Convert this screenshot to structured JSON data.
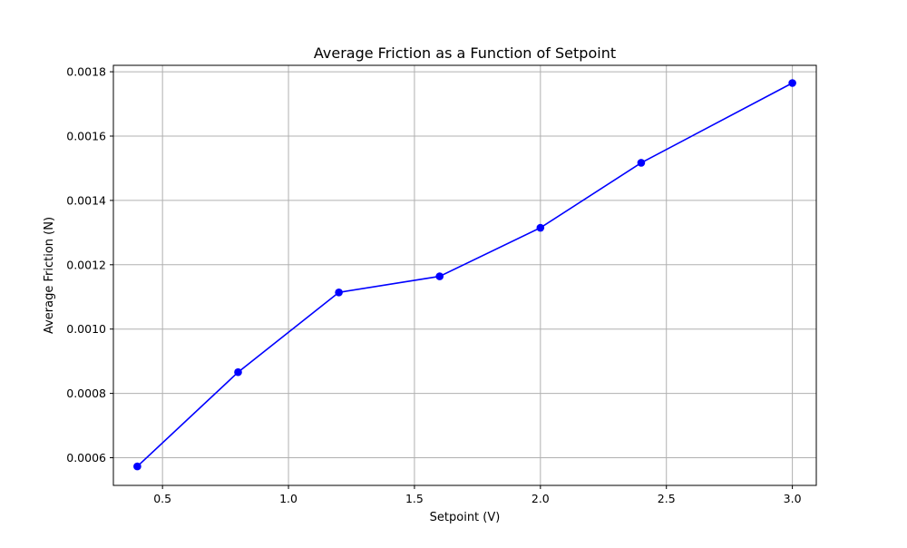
{
  "chart_data": {
    "type": "line",
    "title": "Average Friction as a Function of Setpoint",
    "xlabel": "Setpoint (V)",
    "ylabel": "Average Friction (N)",
    "xlim": [
      0.305,
      3.095
    ],
    "ylim": [
      0.000514,
      0.00182
    ],
    "grid": true,
    "xticks": [
      0.5,
      1.0,
      1.5,
      2.0,
      2.5,
      3.0
    ],
    "xtick_labels": [
      "0.5",
      "1.0",
      "1.5",
      "2.0",
      "2.5",
      "3.0"
    ],
    "yticks": [
      0.0006,
      0.0008,
      0.001,
      0.0012,
      0.0014,
      0.0016,
      0.0018
    ],
    "ytick_labels": [
      "0.0006",
      "0.0008",
      "0.0010",
      "0.0012",
      "0.0014",
      "0.0016",
      "0.0018"
    ],
    "series": [
      {
        "color": "#0000ff",
        "marker": "circle",
        "x": [
          0.4,
          0.8,
          1.2,
          1.6,
          2.0,
          2.4,
          3.0
        ],
        "y": [
          0.000573,
          0.000866,
          0.001114,
          0.001164,
          0.001315,
          0.001517,
          0.001765
        ]
      }
    ]
  }
}
